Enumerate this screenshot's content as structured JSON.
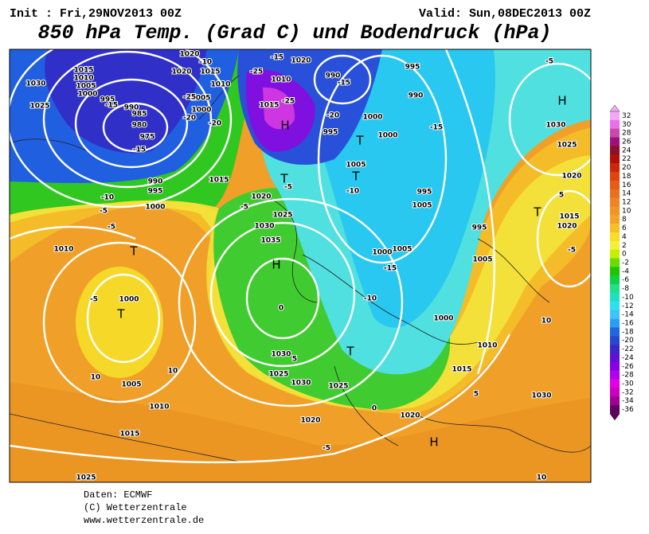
{
  "header": {
    "init": "Init : Fri,29NOV2013 00Z",
    "valid": "Valid: Sun,08DEC2013 00Z",
    "title": "850 hPa Temp. (Grad C) und Bodendruck (hPa)"
  },
  "colorbar": {
    "levels": [
      "32",
      "30",
      "28",
      "26",
      "24",
      "22",
      "20",
      "18",
      "16",
      "14",
      "12",
      "10",
      "8",
      "6",
      "4",
      "2",
      "0",
      "-2",
      "-4",
      "-6",
      "-8",
      "-10",
      "-12",
      "-14",
      "-16",
      "-18",
      "-20",
      "-22",
      "-24",
      "-26",
      "-28",
      "-30",
      "-32",
      "-34",
      "-36"
    ],
    "colors": [
      "#f4a8f4",
      "#e870e8",
      "#c84aa8",
      "#a0107a",
      "#8c1028",
      "#b01008",
      "#cc2808",
      "#dc4410",
      "#e45c18",
      "#ea7020",
      "#ee8424",
      "#f09428",
      "#f2a42a",
      "#f6c028",
      "#f8dc28",
      "#f2f03c",
      "#c4f000",
      "#66de00",
      "#20c400",
      "#10d048",
      "#20e088",
      "#20e0c4",
      "#30e0f0",
      "#40c4f8",
      "#28a0f0",
      "#2068e0",
      "#2848d0",
      "#3a28c4",
      "#6010d4",
      "#8800e4",
      "#b000f0",
      "#e000e0",
      "#c800c0",
      "#a00090",
      "#600060"
    ]
  },
  "map_labels": [
    "1030",
    "1025",
    "1015",
    "1010",
    "1005",
    "1000",
    "995",
    "990",
    "985",
    "980",
    "975",
    "-15",
    "-15",
    "990",
    "995",
    "1000",
    "-10",
    "-5",
    "-5",
    "1010",
    "T",
    "T",
    "1000",
    "-5",
    "1005",
    "10",
    "10",
    "1010",
    "1015",
    "1025",
    "-10",
    "1020",
    "1020",
    "1015",
    "1010",
    "1005",
    "1000",
    "-20",
    "-25",
    "-20",
    "-25",
    "1010",
    "-15",
    "1020",
    "1015",
    "-25",
    "H",
    "1015",
    "T",
    "-5",
    "1020",
    "-5",
    "1025",
    "1030",
    "1035",
    "H",
    "0",
    "1030",
    "5",
    "1025",
    "1030",
    "1025",
    "0",
    "1020",
    "1020",
    "-5",
    "T",
    "990",
    "-15",
    "995",
    "990",
    "1000",
    "-20",
    "995",
    "1000",
    "T",
    "-15",
    "1005",
    "T",
    "995",
    "1005",
    "-10",
    "1000",
    "1005",
    "-15",
    "-10",
    "1000",
    "995",
    "1005",
    "1010",
    "1015",
    "5",
    "H",
    "1030",
    "-5",
    "H",
    "1030",
    "1025",
    "1020",
    "5",
    "T",
    "1015",
    "1020",
    "-5",
    "10",
    "10"
  ],
  "credits": [
    "Daten: ECMWF",
    "(C) Wetterzentrale",
    "www.wetterzentrale.de"
  ]
}
